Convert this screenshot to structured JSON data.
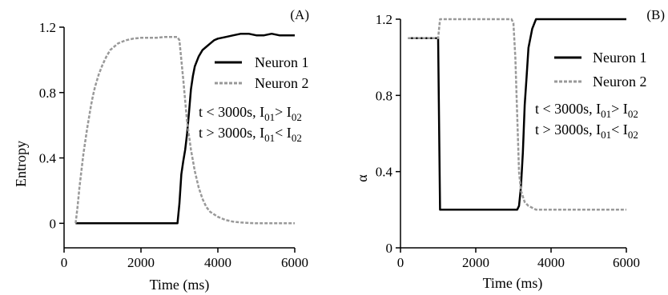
{
  "colors": {
    "neuron1": "#000000",
    "neuron2": "#999999",
    "axis": "#000000"
  },
  "chart_data": [
    {
      "panel_label": "(A)",
      "type": "line",
      "xlabel": "Time (ms)",
      "ylabel": "Entropy",
      "xlim": [
        0,
        6000
      ],
      "ylim": [
        -0.15,
        1.2
      ],
      "xticks": [
        "0",
        "2000",
        "4000",
        "6000"
      ],
      "yticks": [
        "0",
        "0.4",
        "0.8",
        "1.2"
      ],
      "xtick_values": [
        0,
        2000,
        4000,
        6000
      ],
      "ytick_values": [
        0,
        0.4,
        0.8,
        1.2
      ],
      "legend": {
        "position": "right",
        "entries": [
          "Neuron 1",
          "Neuron 2"
        ]
      },
      "annotation": {
        "line1": {
          "prefix": "t < 3000s, I",
          "sub1": "01",
          "mid": "> I",
          "sub2": "02"
        },
        "line2": {
          "prefix": "t > 3000s, I",
          "sub1": "01",
          "mid": "< I",
          "sub2": "02"
        }
      },
      "series": [
        {
          "name": "Neuron 1",
          "style": "solid",
          "x": [
            300,
            500,
            1000,
            1500,
            2000,
            2500,
            2950,
            3000,
            3050,
            3100,
            3150,
            3200,
            3250,
            3300,
            3350,
            3400,
            3500,
            3600,
            3700,
            3800,
            3900,
            4000,
            4200,
            4400,
            4600,
            4800,
            5000,
            5200,
            5400,
            5600,
            5800,
            6000
          ],
          "y": [
            0,
            0,
            0,
            0,
            0,
            0,
            0,
            0.12,
            0.3,
            0.38,
            0.45,
            0.55,
            0.68,
            0.82,
            0.9,
            0.96,
            1.02,
            1.06,
            1.08,
            1.1,
            1.12,
            1.13,
            1.14,
            1.15,
            1.16,
            1.16,
            1.15,
            1.15,
            1.16,
            1.15,
            1.15,
            1.15
          ]
        },
        {
          "name": "Neuron 2",
          "style": "dashed",
          "x": [
            300,
            350,
            400,
            450,
            500,
            550,
            600,
            650,
            700,
            750,
            800,
            900,
            1000,
            1100,
            1200,
            1300,
            1400,
            1500,
            1600,
            1800,
            2000,
            2200,
            2400,
            2600,
            2800,
            2950,
            3000,
            3050,
            3100,
            3150,
            3200,
            3300,
            3400,
            3500,
            3600,
            3700,
            3800,
            4000,
            4200,
            4400,
            4600,
            4800,
            5000,
            5500,
            6000
          ],
          "y": [
            0,
            0.1,
            0.22,
            0.32,
            0.42,
            0.5,
            0.58,
            0.65,
            0.72,
            0.78,
            0.83,
            0.91,
            0.97,
            1.02,
            1.06,
            1.08,
            1.1,
            1.11,
            1.12,
            1.13,
            1.135,
            1.135,
            1.135,
            1.14,
            1.14,
            1.14,
            1.12,
            1.0,
            0.88,
            0.75,
            0.62,
            0.45,
            0.32,
            0.22,
            0.15,
            0.1,
            0.07,
            0.04,
            0.02,
            0.01,
            0.005,
            0.002,
            0,
            0,
            0
          ]
        }
      ]
    },
    {
      "panel_label": "(B)",
      "type": "line",
      "xlabel": "Time (ms)",
      "ylabel": "α",
      "xlim": [
        0,
        6000
      ],
      "ylim": [
        0,
        1.2
      ],
      "xticks": [
        "0",
        "2000",
        "4000",
        "6000"
      ],
      "yticks": [
        "0",
        "0.4",
        "0.8",
        "1.2"
      ],
      "xtick_values": [
        0,
        2000,
        4000,
        6000
      ],
      "ytick_values": [
        0,
        0.4,
        0.8,
        1.2
      ],
      "legend": {
        "position": "right",
        "entries": [
          "Neuron 1",
          "Neuron 2"
        ]
      },
      "annotation": {
        "line1": {
          "prefix": "t < 3000s, I",
          "sub1": "01",
          "mid": "> I",
          "sub2": "02"
        },
        "line2": {
          "prefix": "t > 3000s, I",
          "sub1": "01",
          "mid": "< I",
          "sub2": "02"
        }
      },
      "series": [
        {
          "name": "Neuron 1",
          "style": "solid",
          "x": [
            200,
            500,
            950,
            1000,
            1050,
            1500,
            2000,
            2500,
            3000,
            3100,
            3150,
            3200,
            3250,
            3300,
            3350,
            3400,
            3500,
            3600,
            4000,
            5000,
            6000
          ],
          "y": [
            1.1,
            1.1,
            1.1,
            1.1,
            0.2,
            0.2,
            0.2,
            0.2,
            0.2,
            0.2,
            0.22,
            0.32,
            0.5,
            0.75,
            0.9,
            1.05,
            1.15,
            1.2,
            1.2,
            1.2,
            1.2
          ]
        },
        {
          "name": "Neuron 2",
          "style": "dashed",
          "x": [
            200,
            500,
            950,
            1000,
            1050,
            1500,
            2000,
            2500,
            2950,
            3000,
            3050,
            3100,
            3150,
            3200,
            3300,
            3400,
            3500,
            3600,
            4000,
            5000,
            6000
          ],
          "y": [
            1.1,
            1.1,
            1.1,
            1.1,
            1.2,
            1.2,
            1.2,
            1.2,
            1.2,
            1.18,
            1.0,
            0.7,
            0.4,
            0.3,
            0.24,
            0.22,
            0.21,
            0.2,
            0.2,
            0.2,
            0.2
          ]
        }
      ]
    }
  ]
}
